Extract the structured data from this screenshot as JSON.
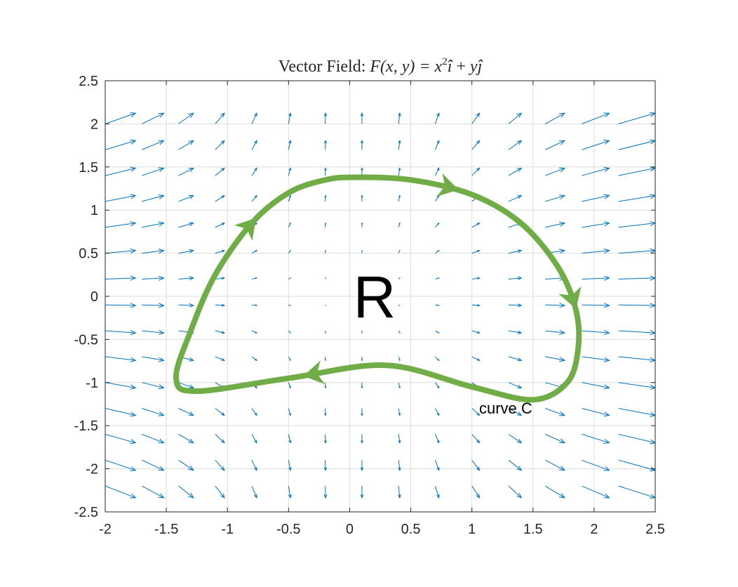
{
  "chart_data": {
    "type": "quiver",
    "title": {
      "prefix": "Vector Field:",
      "lhs": "F(x, y) = x",
      "sup": "2",
      "i_hat": "î",
      "plus": " + ",
      "y_var": "y",
      "j_hat": "ĵ"
    },
    "xlim": [
      -2,
      2.5
    ],
    "ylim": [
      -2.5,
      2.5
    ],
    "x_ticks": [
      -2,
      -1.5,
      -1,
      -0.5,
      0,
      0.5,
      1,
      1.5,
      2,
      2.5
    ],
    "y_ticks": [
      -2.5,
      -2,
      -1.5,
      -1,
      -0.5,
      0,
      0.5,
      1,
      1.5,
      2,
      2.5
    ],
    "x_tick_labels": [
      "-2",
      "-1.5",
      "-1",
      "-0.5",
      "0",
      "0.5",
      "1",
      "1.5",
      "2",
      "2.5"
    ],
    "y_tick_labels": [
      "-2.5",
      "-2",
      "-1.5",
      "-1",
      "-0.5",
      "0",
      "0.5",
      "1",
      "1.5",
      "2",
      "2.5"
    ],
    "grid": true,
    "field": {
      "x": [
        -2,
        -1.7,
        -1.4,
        -1.1,
        -0.8,
        -0.5,
        -0.2,
        0.1,
        0.4,
        0.7,
        1.0,
        1.3,
        1.6,
        1.9,
        2.2
      ],
      "y": [
        2.0,
        1.7,
        1.4,
        1.1,
        0.8,
        0.5,
        0.2,
        -0.1,
        -0.4,
        -0.7,
        -1.0,
        -1.3,
        -1.6,
        -1.9,
        -2.2
      ],
      "u_formula": "x^2",
      "v_formula": "y"
    },
    "colors": {
      "field": "#0072BD",
      "curve": "#70AD47",
      "grid": "#dcdcdc",
      "axes": "#262626"
    },
    "curve": {
      "label": "curve C",
      "points": [
        [
          0.05,
          1.38
        ],
        [
          0.5,
          1.35
        ],
        [
          1.0,
          1.18
        ],
        [
          1.4,
          0.85
        ],
        [
          1.7,
          0.35
        ],
        [
          1.85,
          -0.15
        ],
        [
          1.87,
          -0.6
        ],
        [
          1.78,
          -1.0
        ],
        [
          1.5,
          -1.2
        ],
        [
          1.0,
          -1.05
        ],
        [
          0.3,
          -0.8
        ],
        [
          -0.5,
          -0.95
        ],
        [
          -1.25,
          -1.1
        ],
        [
          -1.42,
          -0.95
        ],
        [
          -1.3,
          -0.4
        ],
        [
          -1.1,
          0.25
        ],
        [
          -0.8,
          0.85
        ],
        [
          -0.5,
          1.2
        ],
        [
          -0.2,
          1.35
        ]
      ],
      "arrows": [
        [
          0.8,
          1.26
        ],
        [
          -0.9,
          0.9
        ],
        [
          1.8,
          -0.05
        ],
        [
          -0.3,
          -0.9
        ]
      ]
    },
    "region_label": "R"
  }
}
